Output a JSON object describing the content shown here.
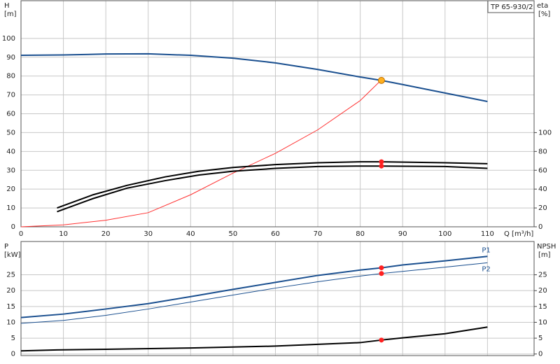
{
  "chart_data": [
    {
      "type": "line",
      "label": "TP 65-930/2",
      "x_label": "Q [m³/h]",
      "y_label": "H",
      "y_unit": "[m]",
      "y2_label": "eta",
      "y2_unit": "[%]",
      "xlim": [
        0,
        121
      ],
      "xticks": [
        0,
        10,
        20,
        30,
        40,
        50,
        60,
        70,
        80,
        90,
        100,
        110
      ],
      "x_tick_labels": true,
      "ylim": [
        0,
        120
      ],
      "yticks": [
        0,
        10,
        20,
        30,
        40,
        50,
        60,
        70,
        80,
        90,
        100
      ],
      "y2lim": [
        0,
        240
      ],
      "y2ticks": [
        0,
        20,
        40,
        60,
        80,
        100
      ],
      "grid": true,
      "series": [
        {
          "color": "#1a4f8f",
          "style": "thick",
          "x": [
            0,
            10,
            20,
            30,
            40,
            50,
            60,
            70,
            80,
            85,
            90,
            100,
            110
          ],
          "values": [
            91,
            91.2,
            91.7,
            91.8,
            91,
            89.5,
            87,
            83.5,
            79.5,
            77.7,
            75.5,
            71,
            66.5
          ]
        },
        {
          "color": "#ff3030",
          "style": "thin",
          "axis": "y2",
          "x": [
            0,
            10,
            20,
            30,
            40,
            50,
            60,
            70,
            80,
            85
          ],
          "values": [
            0,
            2,
            7,
            15,
            34,
            57,
            78,
            103,
            134,
            156
          ]
        },
        {
          "color": "#000000",
          "style": "thick",
          "axis": "y2",
          "x": [
            8.5,
            17,
            25,
            34,
            42,
            50,
            60,
            70,
            80,
            85,
            100,
            110
          ],
          "values": [
            20,
            34,
            44,
            53,
            59,
            63,
            66,
            68,
            69,
            69,
            68,
            67
          ]
        },
        {
          "color": "#000000",
          "style": "thick",
          "axis": "y2",
          "x": [
            8.5,
            17,
            25,
            34,
            42,
            50,
            60,
            70,
            80,
            85,
            100,
            110
          ],
          "values": [
            16,
            30,
            41,
            49,
            55,
            59,
            62,
            64,
            64.5,
            64.5,
            64,
            62
          ]
        }
      ],
      "points": [
        {
          "x": 85,
          "y": 77.7,
          "color": "#ffb020"
        },
        {
          "x": 85,
          "y": 69,
          "axis": "y2",
          "color": "#ff2020"
        },
        {
          "x": 85,
          "y": 64.5,
          "axis": "y2",
          "color": "#ff2020"
        }
      ]
    },
    {
      "type": "line",
      "y_label": "P",
      "y_unit": "[kW]",
      "y2_label": "NPSH",
      "y2_unit": "[m]",
      "xlim": [
        0,
        121
      ],
      "xticks": [
        0,
        10,
        20,
        30,
        40,
        50,
        60,
        70,
        80,
        90,
        100,
        110
      ],
      "x_tick_labels": false,
      "ylim": [
        -0.5,
        35.5
      ],
      "yticks": [
        0,
        5,
        10,
        15,
        20,
        25
      ],
      "y2lim": [
        -0.5,
        35.5
      ],
      "y2ticks": [
        0,
        5,
        10,
        15,
        20,
        25
      ],
      "grid": true,
      "series": [
        {
          "name": "P1",
          "color": "#1a4f8f",
          "style": "thick",
          "x": [
            0,
            10,
            20,
            30,
            40,
            50,
            60,
            70,
            80,
            85,
            90,
            100,
            110
          ],
          "values": [
            11.5,
            12.6,
            14.2,
            15.9,
            18.1,
            20.4,
            22.6,
            24.8,
            26.5,
            27.2,
            28.1,
            29.4,
            30.8
          ]
        },
        {
          "name": "P2",
          "color": "#1a4f8f",
          "style": "thin",
          "x": [
            0,
            10,
            20,
            30,
            40,
            50,
            60,
            70,
            80,
            85,
            100,
            110
          ],
          "values": [
            9.7,
            10.6,
            12.2,
            14.2,
            16.4,
            18.6,
            20.8,
            22.8,
            24.6,
            25.4,
            27.4,
            28.8
          ]
        },
        {
          "color": "#000000",
          "style": "thick",
          "axis": "y2",
          "x": [
            0,
            8.5,
            20,
            40,
            60,
            80,
            85,
            90,
            100,
            110
          ],
          "values": [
            1.0,
            1.3,
            1.5,
            1.9,
            2.5,
            3.6,
            4.4,
            5.1,
            6.4,
            8.5
          ]
        }
      ],
      "points": [
        {
          "x": 85,
          "y": 27.2,
          "color": "#ff2020"
        },
        {
          "x": 85,
          "y": 25.4,
          "color": "#ff2020"
        },
        {
          "x": 85,
          "y": 4.4,
          "axis": "y2",
          "color": "#ff2020"
        }
      ]
    }
  ]
}
